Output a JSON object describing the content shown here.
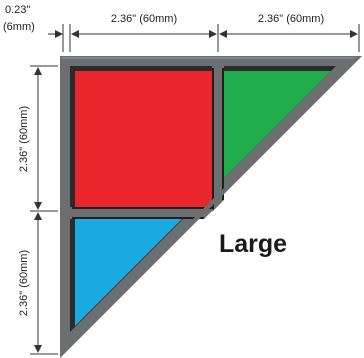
{
  "dimensions": {
    "top_small": "0.23\"\n(6mm)",
    "top_small_line1": "0.23\"",
    "top_small_line2": "(6mm)",
    "top_left_span": "2.36\" (60mm)",
    "top_right_span": "2.36\" (60mm)",
    "left_upper_span": "2.36\" (60mm)",
    "left_lower_span": "2.36\" (60mm)"
  },
  "size_label": "Large",
  "colors": {
    "frame": "#6d6e70",
    "frame_edge": "#2b2b2b",
    "divider": "#1f1f1f",
    "red": "#e8262c",
    "green": "#1fae4b",
    "blue": "#1aa9e1",
    "dim_line": "#333333"
  },
  "icons": {
    "dim_arrows": "arrow-icon"
  }
}
